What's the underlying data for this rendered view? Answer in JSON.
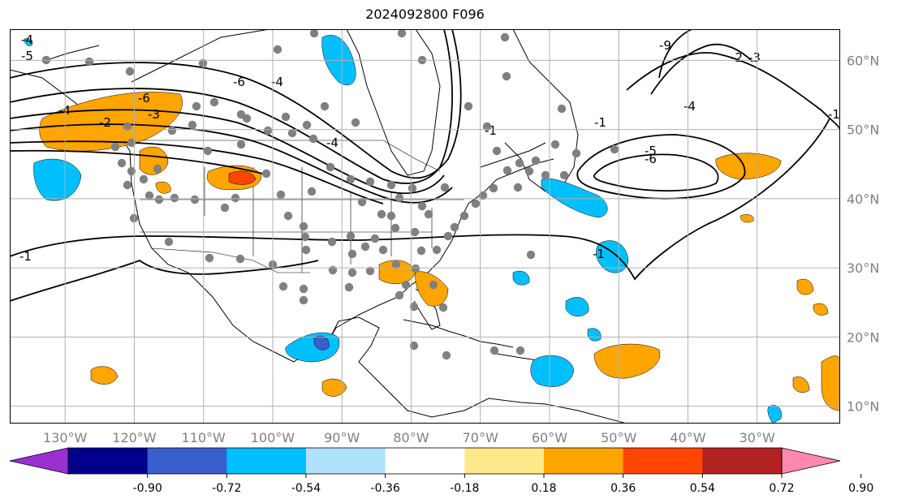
{
  "title": "2024092800 F096",
  "map": {
    "lon_labels": [
      "130°W",
      "120°W",
      "110°W",
      "100°W",
      "90°W",
      "80°W",
      "70°W",
      "60°W",
      "50°W",
      "40°W",
      "30°W"
    ],
    "lat_labels": [
      "10°N",
      "20°N",
      "30°N",
      "40°N",
      "50°N",
      "60°N"
    ],
    "lon_range": [
      -138,
      -18
    ],
    "lat_range": [
      7.5,
      64.5
    ],
    "grid": true,
    "contour_labels": [
      "-4",
      "-5",
      "-6",
      "-6",
      "-4",
      "-2",
      "-3",
      "-4",
      "-4",
      "-1",
      "-1",
      "-9",
      "-2",
      "-3",
      "-4",
      "-5",
      "-6",
      "-1",
      "-1",
      "-1"
    ]
  },
  "colorbar": {
    "ticks": [
      "-0.90",
      "-0.72",
      "-0.54",
      "-0.36",
      "-0.18",
      "0.18",
      "0.36",
      "0.54",
      "0.72",
      "0.90"
    ],
    "colors": [
      "#9b30d0",
      "#00008b",
      "#3a5fcd",
      "#00bfff",
      "#b0e2ff",
      "#ffffff",
      "#ffe98a",
      "#ffa500",
      "#ff4500",
      "#b22222",
      "#ff88b0"
    ],
    "extend": "both"
  },
  "colors": {
    "gray_dot": "#808080",
    "contour": "#000000",
    "grid": "#b0b0b0"
  }
}
